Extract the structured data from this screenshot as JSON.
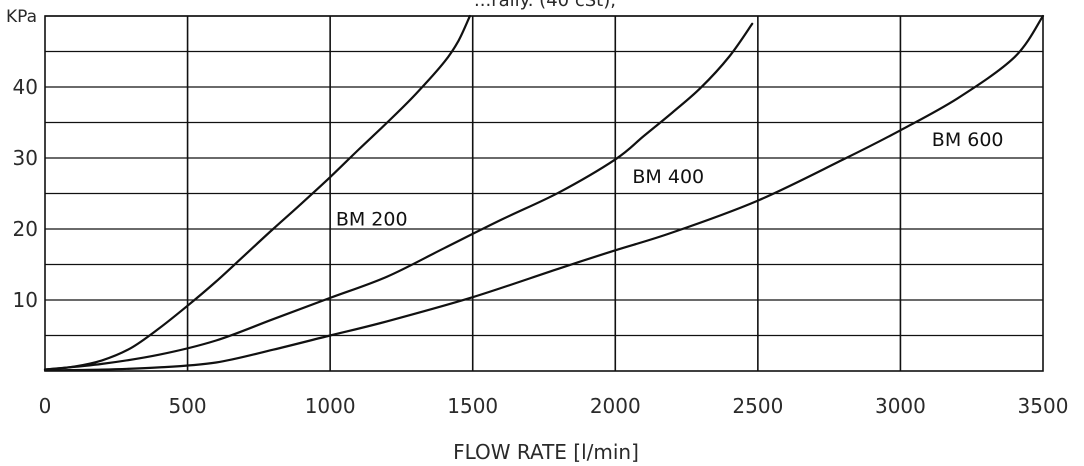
{
  "chart_data": {
    "type": "line",
    "title": "...rally. (40 cSt),",
    "ylabel": "KPa",
    "xlabel": "FLOW RATE [l/min]",
    "xlim": [
      0,
      3500
    ],
    "ylim": [
      0,
      50
    ],
    "x_ticks": [
      "0",
      "500",
      "1000",
      "1500",
      "2000",
      "2500",
      "3000",
      "3500"
    ],
    "y_ticks": [
      "10",
      "20",
      "30",
      "40"
    ],
    "grid": true,
    "colors": {
      "line": "#111111",
      "grid": "#111111",
      "text": "#2a2a2a"
    },
    "series": [
      {
        "name": "BM 200",
        "x": [
          0,
          100,
          200,
          300,
          400,
          500,
          600,
          700,
          800,
          900,
          1000,
          1100,
          1200,
          1300,
          1400,
          1450,
          1490
        ],
        "y": [
          0.2,
          0.6,
          1.5,
          3.2,
          6.0,
          9.2,
          12.6,
          16.3,
          20.0,
          23.6,
          27.3,
          31.2,
          35.0,
          39.0,
          43.5,
          46.5,
          50
        ]
      },
      {
        "name": "BM 400",
        "x": [
          0,
          200,
          400,
          600,
          800,
          1000,
          1200,
          1400,
          1600,
          1800,
          2000,
          2100,
          2200,
          2300,
          2400,
          2480
        ],
        "y": [
          0.2,
          1.0,
          2.3,
          4.3,
          7.3,
          10.3,
          13.3,
          17.3,
          21.3,
          25.1,
          29.8,
          33.1,
          36.4,
          39.9,
          44.3,
          48.9
        ]
      },
      {
        "name": "BM 600",
        "x": [
          0,
          200,
          400,
          600,
          800,
          1000,
          1200,
          1500,
          1800,
          2000,
          2200,
          2500,
          2800,
          3000,
          3200,
          3400,
          3500
        ],
        "y": [
          0.1,
          0.2,
          0.5,
          1.2,
          3.0,
          5.0,
          7.0,
          10.4,
          14.4,
          17.0,
          19.5,
          24.0,
          29.8,
          33.9,
          38.4,
          44.2,
          50
        ]
      }
    ],
    "annotations": [
      {
        "text": "BM 200",
        "x": 1020,
        "y": 20.5
      },
      {
        "text": "BM 400",
        "x": 2060,
        "y": 26.5
      },
      {
        "text": "BM 600",
        "x": 3110,
        "y": 31.7
      }
    ]
  }
}
